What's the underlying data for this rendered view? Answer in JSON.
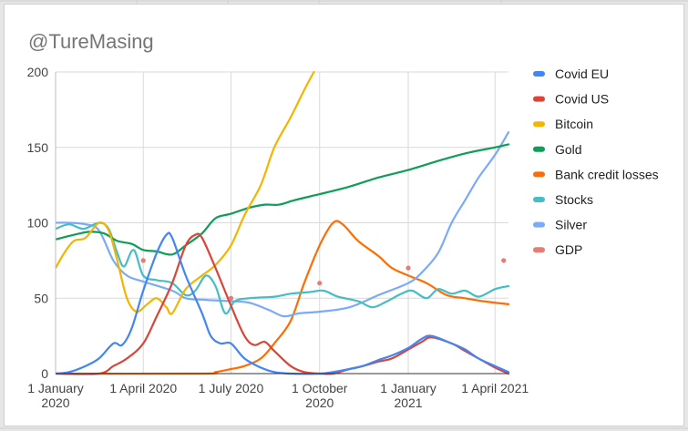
{
  "chart_data": {
    "type": "line",
    "title": "@TureMasing",
    "xlabel": "",
    "ylabel": "",
    "ylim": [
      0,
      200
    ],
    "xlim": [
      "2020-01-01",
      "2021-04-15"
    ],
    "y_ticks": [
      0,
      50,
      100,
      150,
      200
    ],
    "y_tick_labels": [
      "0",
      "50",
      "100",
      "150",
      "200"
    ],
    "x_ticks": [
      "2020-01-01",
      "2020-04-01",
      "2020-07-01",
      "2020-10-01",
      "2021-01-01",
      "2021-04-01"
    ],
    "x_tick_labels": [
      [
        "1 January",
        "2020"
      ],
      [
        "1 April 2020"
      ],
      [
        "1 July 2020"
      ],
      [
        "1 October",
        "2020"
      ],
      [
        "1 January",
        "2021"
      ],
      [
        "1 April 2021"
      ]
    ],
    "grid": true,
    "legend_position": "right",
    "series": [
      {
        "name": "Covid EU",
        "color": "#4285f4",
        "style": "line",
        "points": [
          [
            "2020-01-01",
            0
          ],
          [
            "2020-01-15",
            1
          ],
          [
            "2020-02-01",
            5
          ],
          [
            "2020-02-15",
            10
          ],
          [
            "2020-03-01",
            20
          ],
          [
            "2020-03-10",
            19
          ],
          [
            "2020-03-20",
            30
          ],
          [
            "2020-04-01",
            55
          ],
          [
            "2020-04-15",
            80
          ],
          [
            "2020-04-25",
            92
          ],
          [
            "2020-05-01",
            90
          ],
          [
            "2020-05-15",
            65
          ],
          [
            "2020-06-01",
            40
          ],
          [
            "2020-06-10",
            25
          ],
          [
            "2020-06-20",
            20
          ],
          [
            "2020-07-01",
            20
          ],
          [
            "2020-07-15",
            10
          ],
          [
            "2020-08-01",
            4
          ],
          [
            "2020-08-15",
            1
          ],
          [
            "2020-09-01",
            0
          ],
          [
            "2020-10-01",
            0
          ],
          [
            "2020-10-15",
            1
          ],
          [
            "2020-11-01",
            3
          ],
          [
            "2020-11-15",
            5
          ],
          [
            "2020-12-01",
            9
          ],
          [
            "2020-12-15",
            12
          ],
          [
            "2021-01-01",
            17
          ],
          [
            "2021-01-15",
            23
          ],
          [
            "2021-01-25",
            25
          ],
          [
            "2021-02-15",
            20
          ],
          [
            "2021-03-01",
            16
          ],
          [
            "2021-03-15",
            10
          ],
          [
            "2021-04-01",
            5
          ],
          [
            "2021-04-15",
            1
          ]
        ]
      },
      {
        "name": "Covid US",
        "color": "#db4437",
        "style": "line",
        "points": [
          [
            "2020-01-01",
            0
          ],
          [
            "2020-02-15",
            0
          ],
          [
            "2020-03-01",
            5
          ],
          [
            "2020-03-15",
            10
          ],
          [
            "2020-04-01",
            20
          ],
          [
            "2020-04-15",
            38
          ],
          [
            "2020-05-01",
            60
          ],
          [
            "2020-05-15",
            85
          ],
          [
            "2020-05-25",
            92
          ],
          [
            "2020-06-01",
            90
          ],
          [
            "2020-06-15",
            70
          ],
          [
            "2020-07-01",
            45
          ],
          [
            "2020-07-15",
            25
          ],
          [
            "2020-07-25",
            19
          ],
          [
            "2020-08-05",
            21
          ],
          [
            "2020-08-15",
            15
          ],
          [
            "2020-09-01",
            5
          ],
          [
            "2020-09-15",
            1
          ],
          [
            "2020-10-01",
            0
          ],
          [
            "2020-10-15",
            0
          ],
          [
            "2020-11-01",
            3
          ],
          [
            "2020-11-15",
            5
          ],
          [
            "2020-12-01",
            8
          ],
          [
            "2020-12-15",
            10
          ],
          [
            "2021-01-01",
            16
          ],
          [
            "2021-01-15",
            21
          ],
          [
            "2021-01-25",
            24
          ],
          [
            "2021-02-15",
            20
          ],
          [
            "2021-03-01",
            15
          ],
          [
            "2021-03-15",
            10
          ],
          [
            "2021-04-01",
            4
          ],
          [
            "2021-04-15",
            0
          ]
        ]
      },
      {
        "name": "Bitcoin",
        "color": "#f4b400",
        "style": "line",
        "points": [
          [
            "2020-01-01",
            70
          ],
          [
            "2020-01-10",
            80
          ],
          [
            "2020-01-20",
            88
          ],
          [
            "2020-02-01",
            90
          ],
          [
            "2020-02-15",
            100
          ],
          [
            "2020-02-25",
            95
          ],
          [
            "2020-03-05",
            75
          ],
          [
            "2020-03-15",
            50
          ],
          [
            "2020-03-25",
            41
          ],
          [
            "2020-04-05",
            46
          ],
          [
            "2020-04-15",
            50
          ],
          [
            "2020-04-25",
            44
          ],
          [
            "2020-05-01",
            40
          ],
          [
            "2020-05-15",
            56
          ],
          [
            "2020-06-01",
            65
          ],
          [
            "2020-06-15",
            72
          ],
          [
            "2020-07-01",
            85
          ],
          [
            "2020-07-15",
            105
          ],
          [
            "2020-08-01",
            125
          ],
          [
            "2020-08-15",
            150
          ],
          [
            "2020-09-01",
            170
          ],
          [
            "2020-09-15",
            188
          ],
          [
            "2020-09-25",
            200
          ]
        ]
      },
      {
        "name": "Gold",
        "color": "#0f9d58",
        "style": "line",
        "points": [
          [
            "2020-01-01",
            89
          ],
          [
            "2020-01-20",
            92
          ],
          [
            "2020-02-05",
            94
          ],
          [
            "2020-02-20",
            93
          ],
          [
            "2020-03-05",
            88
          ],
          [
            "2020-03-20",
            86
          ],
          [
            "2020-04-01",
            82
          ],
          [
            "2020-04-15",
            81
          ],
          [
            "2020-05-01",
            79
          ],
          [
            "2020-05-15",
            85
          ],
          [
            "2020-06-01",
            93
          ],
          [
            "2020-06-15",
            103
          ],
          [
            "2020-07-01",
            106
          ],
          [
            "2020-07-20",
            110
          ],
          [
            "2020-08-05",
            112
          ],
          [
            "2020-08-20",
            112
          ],
          [
            "2020-09-05",
            115
          ],
          [
            "2020-10-01",
            119
          ],
          [
            "2020-11-01",
            124
          ],
          [
            "2020-12-01",
            130
          ],
          [
            "2021-01-01",
            135
          ],
          [
            "2021-02-01",
            141
          ],
          [
            "2021-03-01",
            146
          ],
          [
            "2021-04-01",
            150
          ],
          [
            "2021-04-15",
            152
          ]
        ]
      },
      {
        "name": "Bank credit losses",
        "color": "#ff6d01",
        "style": "line",
        "points": [
          [
            "2020-01-01",
            0
          ],
          [
            "2020-06-01",
            0
          ],
          [
            "2020-06-15",
            1
          ],
          [
            "2020-07-01",
            3
          ],
          [
            "2020-07-15",
            5
          ],
          [
            "2020-08-01",
            10
          ],
          [
            "2020-08-15",
            20
          ],
          [
            "2020-09-01",
            35
          ],
          [
            "2020-09-15",
            60
          ],
          [
            "2020-10-01",
            85
          ],
          [
            "2020-10-15",
            100
          ],
          [
            "2020-10-25",
            99
          ],
          [
            "2020-11-10",
            88
          ],
          [
            "2020-12-01",
            78
          ],
          [
            "2020-12-15",
            70
          ],
          [
            "2021-01-01",
            65
          ],
          [
            "2021-01-20",
            60
          ],
          [
            "2021-02-10",
            52
          ],
          [
            "2021-03-01",
            50
          ],
          [
            "2021-03-20",
            48
          ],
          [
            "2021-04-15",
            46
          ]
        ]
      },
      {
        "name": "Stocks",
        "color": "#46bdc6",
        "style": "line",
        "points": [
          [
            "2020-01-01",
            96
          ],
          [
            "2020-01-15",
            99
          ],
          [
            "2020-01-30",
            96
          ],
          [
            "2020-02-15",
            100
          ],
          [
            "2020-02-25",
            96
          ],
          [
            "2020-03-05",
            80
          ],
          [
            "2020-03-12",
            71
          ],
          [
            "2020-03-22",
            82
          ],
          [
            "2020-04-01",
            65
          ],
          [
            "2020-04-15",
            62
          ],
          [
            "2020-05-01",
            60
          ],
          [
            "2020-05-15",
            52
          ],
          [
            "2020-05-25",
            55
          ],
          [
            "2020-06-05",
            65
          ],
          [
            "2020-06-15",
            58
          ],
          [
            "2020-06-25",
            40
          ],
          [
            "2020-07-05",
            48
          ],
          [
            "2020-07-20",
            50
          ],
          [
            "2020-08-15",
            51
          ],
          [
            "2020-09-01",
            53
          ],
          [
            "2020-09-20",
            54
          ],
          [
            "2020-10-05",
            55
          ],
          [
            "2020-10-20",
            51
          ],
          [
            "2020-11-10",
            48
          ],
          [
            "2020-11-25",
            44
          ],
          [
            "2020-12-10",
            48
          ],
          [
            "2020-12-25",
            53
          ],
          [
            "2021-01-05",
            55
          ],
          [
            "2021-01-20",
            50
          ],
          [
            "2021-02-01",
            56
          ],
          [
            "2021-02-15",
            53
          ],
          [
            "2021-03-01",
            55
          ],
          [
            "2021-03-15",
            51
          ],
          [
            "2021-04-01",
            56
          ],
          [
            "2021-04-15",
            58
          ]
        ]
      },
      {
        "name": "Silver",
        "color": "#7baaf7",
        "style": "line",
        "points": [
          [
            "2020-01-01",
            100
          ],
          [
            "2020-01-15",
            100
          ],
          [
            "2020-02-01",
            99
          ],
          [
            "2020-02-15",
            95
          ],
          [
            "2020-03-01",
            75
          ],
          [
            "2020-03-15",
            65
          ],
          [
            "2020-04-01",
            61
          ],
          [
            "2020-05-01",
            55
          ],
          [
            "2020-05-15",
            50
          ],
          [
            "2020-06-01",
            49
          ],
          [
            "2020-07-01",
            48
          ],
          [
            "2020-07-20",
            47
          ],
          [
            "2020-08-10",
            42
          ],
          [
            "2020-08-25",
            38
          ],
          [
            "2020-09-10",
            40
          ],
          [
            "2020-10-01",
            41
          ],
          [
            "2020-11-01",
            44
          ],
          [
            "2020-12-01",
            52
          ],
          [
            "2021-01-01",
            60
          ],
          [
            "2021-01-15",
            67
          ],
          [
            "2021-02-01",
            80
          ],
          [
            "2021-02-15",
            100
          ],
          [
            "2021-03-01",
            115
          ],
          [
            "2021-03-15",
            130
          ],
          [
            "2021-04-01",
            145
          ],
          [
            "2021-04-15",
            160
          ]
        ]
      },
      {
        "name": "GDP",
        "color": "#e67c73",
        "style": "points",
        "points": [
          [
            "2019-12-25",
            100
          ],
          [
            "2020-04-01",
            75
          ],
          [
            "2020-07-01",
            50
          ],
          [
            "2020-10-01",
            60
          ],
          [
            "2021-01-01",
            70
          ],
          [
            "2021-04-10",
            75
          ]
        ]
      }
    ]
  }
}
